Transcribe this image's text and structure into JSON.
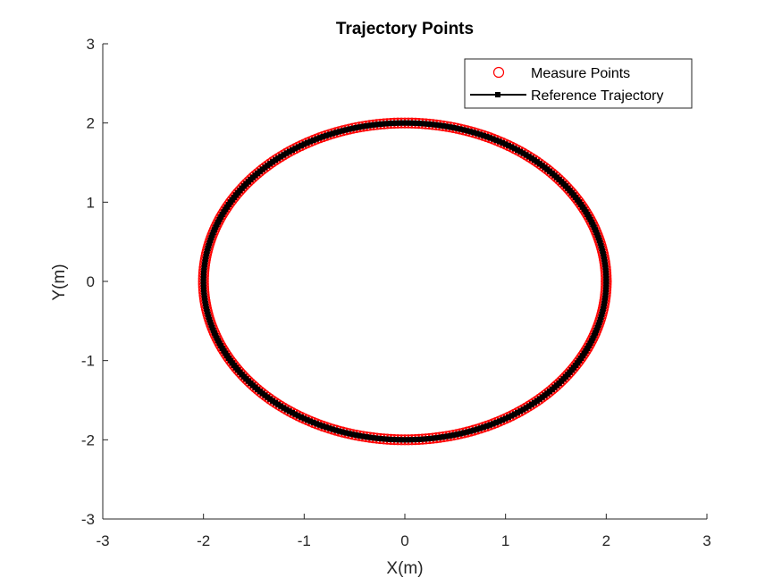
{
  "chart_data": {
    "type": "line",
    "title": "Trajectory Points",
    "xlabel": "X(m)",
    "ylabel": "Y(m)",
    "xlim": [
      -3,
      3
    ],
    "ylim": [
      -3,
      3
    ],
    "xticks": [
      -3,
      -2,
      -1,
      0,
      1,
      2,
      3
    ],
    "yticks": [
      -3,
      -2,
      -1,
      0,
      1,
      2,
      3
    ],
    "xtick_labels": [
      "-3",
      "-2",
      "-1",
      "0",
      "1",
      "2",
      "3"
    ],
    "ytick_labels": [
      "-3",
      "-2",
      "-1",
      "0",
      "1",
      "2",
      "3"
    ],
    "grid": false,
    "legend_position": "top-right",
    "legend": [
      "Measure Points",
      "Reference Trajectory"
    ],
    "series": [
      {
        "name": "Measure Points",
        "kind": "scatter",
        "marker": "circle",
        "color": "#ff0000",
        "shape": "circle",
        "center": [
          0,
          0
        ],
        "radius": 2,
        "count": 360
      },
      {
        "name": "Reference Trajectory",
        "kind": "line",
        "marker": "square",
        "color": "#000000",
        "shape": "circle",
        "center": [
          0,
          0
        ],
        "radius": 2,
        "count": 360
      }
    ]
  }
}
